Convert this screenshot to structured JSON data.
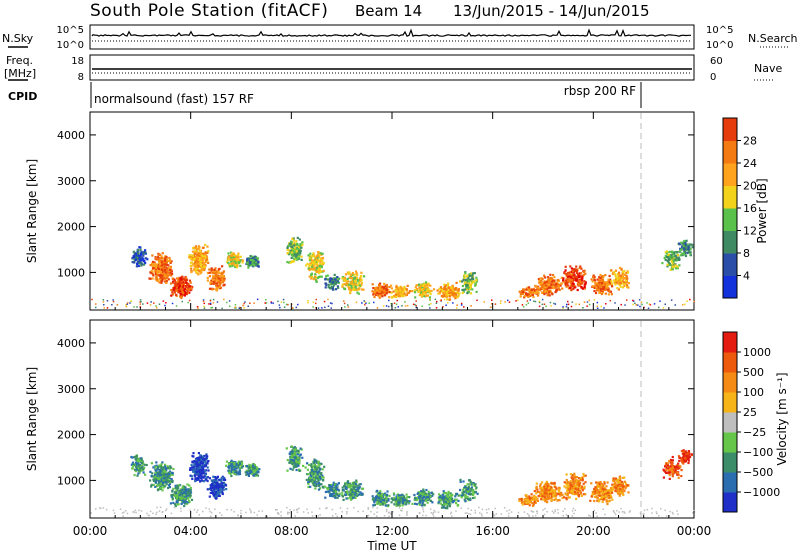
{
  "title": "South Pole Station (fitACF)",
  "beam_label": "Beam 14",
  "date_range": "13/Jun/2015 - 14/Jun/2015",
  "header_panels": {
    "nsky_label": "N.Sky",
    "nsky_ticks": [
      "10^5",
      "10^0"
    ],
    "nsearch_label": "N.Search",
    "nsearch_ticks": [
      "10^5",
      "10^0"
    ],
    "freq_label": "Freq.",
    "freq_unit": "[MHz]",
    "freq_ticks": [
      "18",
      "8"
    ],
    "nave_label": "Nave",
    "nave_ticks": [
      "60",
      "0"
    ],
    "cpid_label": "CPID",
    "cpid_segments": [
      {
        "label": "normalsound (fast) 157 RF",
        "start_hour": 0,
        "end_hour": 22
      },
      {
        "label": "rbsp 200 RF",
        "start_hour": 22,
        "end_hour": 24
      }
    ]
  },
  "chart_data": [
    {
      "type": "heatmap",
      "quantity": "Power",
      "ylabel": "Slant Range [km]",
      "ylim": [
        180,
        4500
      ],
      "yticks": [
        "1000",
        "2000",
        "3000",
        "4000"
      ],
      "xlim_hours": [
        0,
        24
      ],
      "colorbar_label": "Power [dB]",
      "colorbar_ticks": [
        "4",
        "8",
        "12",
        "16",
        "20",
        "24",
        "28"
      ],
      "colorbar_colors": [
        "#1432dc",
        "#2b4ea8",
        "#3f8a63",
        "#5ac14a",
        "#f2d21a",
        "#ffa21e",
        "#f47a12",
        "#e63c0c",
        "#e60000"
      ],
      "colorbar_range": [
        0,
        30
      ]
    },
    {
      "type": "heatmap",
      "quantity": "Velocity",
      "ylabel": "Slant Range [km]",
      "ylim": [
        180,
        4500
      ],
      "yticks": [
        "1000",
        "2000",
        "3000",
        "4000"
      ],
      "xlim_hours": [
        0,
        24
      ],
      "colorbar_label": "Velocity [m s⁻¹]",
      "colorbar_ticks": [
        "1000",
        "500",
        "100",
        "25",
        "−25",
        "−100",
        "−500",
        "−1000"
      ],
      "colorbar_colors": [
        "#1f2fc8",
        "#2a6eb0",
        "#3a8d68",
        "#66c649",
        "#bebebe",
        "#f6b419",
        "#f58b14",
        "#ee5a0c",
        "#e41c10"
      ]
    }
  ],
  "x_axis": {
    "ticks": [
      "00:00",
      "04:00",
      "08:00",
      "12:00",
      "16:00",
      "20:00",
      "00:00"
    ],
    "label": "Time UT"
  }
}
